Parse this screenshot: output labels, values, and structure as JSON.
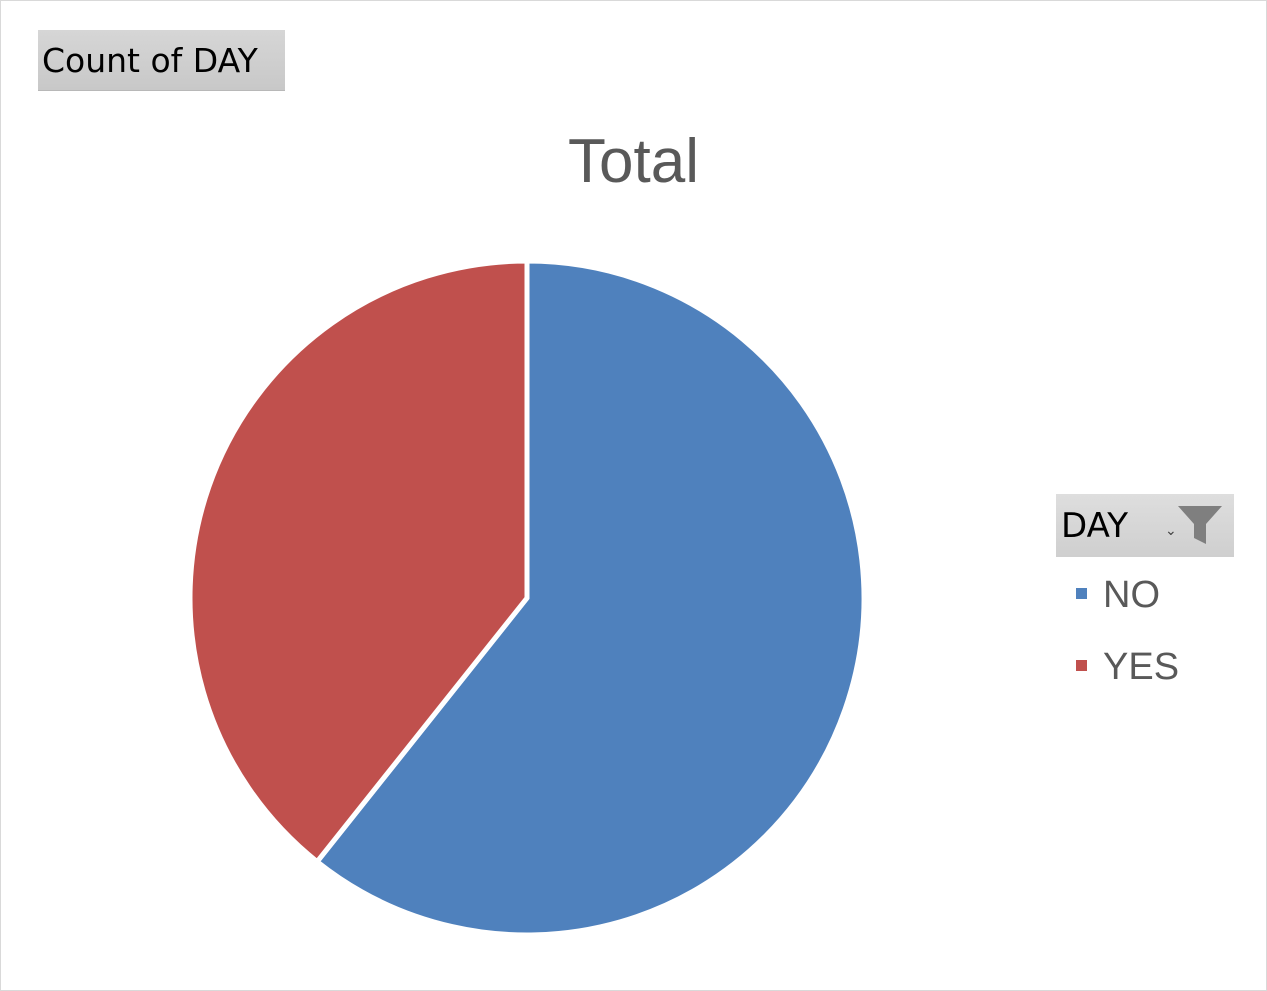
{
  "field_button": {
    "label": "Count of DAY"
  },
  "legend": {
    "filter_label": "DAY",
    "filter_caret": "⌄",
    "filter_icon": "funnel-icon"
  },
  "colors": {
    "NO": "#4f81bd",
    "YES": "#c0504d",
    "title": "#595959",
    "slice_border": "#ffffff"
  },
  "chart_data": {
    "type": "pie",
    "title": "Total",
    "categories": [
      "NO",
      "YES"
    ],
    "values": [
      60.7,
      39.3
    ],
    "start_angle_deg": 0,
    "direction": "clockwise",
    "legend_position": "right"
  }
}
